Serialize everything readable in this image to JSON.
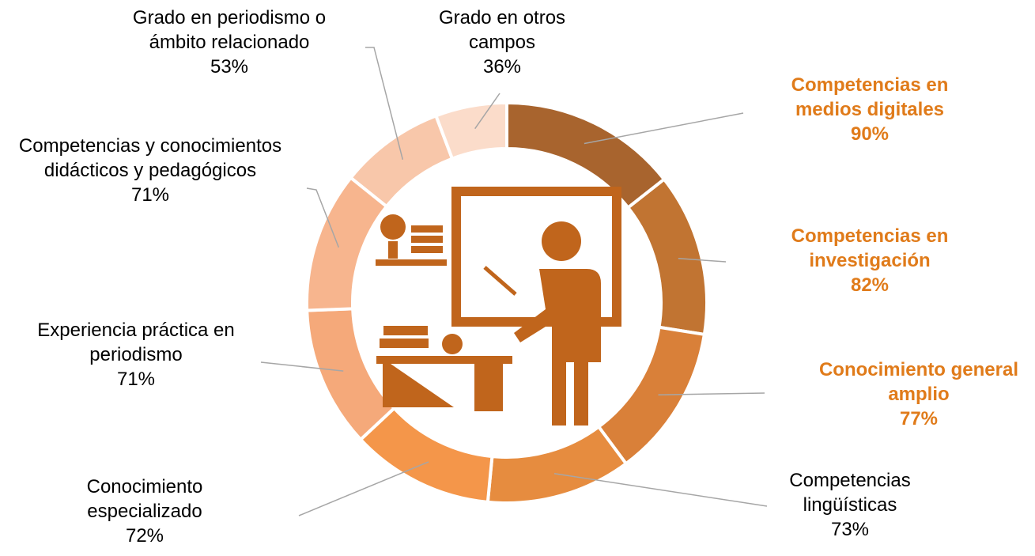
{
  "chart_data": {
    "type": "doughnut",
    "categories": [
      "Competencias en medios digitales",
      "Competencias en investigación",
      "Conocimiento general amplio",
      "Competencias lingüísticas",
      "Conocimiento especializado",
      "Experiencia práctica en periodismo",
      "Competencias y conocimientos didácticos y pedagógicos",
      "Grado en periodismo o ámbito relacionado",
      "Grado en otros campos"
    ],
    "values": [
      90,
      82,
      77,
      73,
      72,
      71,
      71,
      53,
      36
    ],
    "value_labels": [
      "90%",
      "82%",
      "77%",
      "73%",
      "72%",
      "71%",
      "71%",
      "53%",
      "36%"
    ],
    "colors": [
      "#a8642e",
      "#c17432",
      "#d98039",
      "#e68c3f",
      "#f4964a",
      "#f5a97a",
      "#f7b58e",
      "#f8c7aa",
      "#fbdcca"
    ],
    "label_colors": [
      "#e07b1a",
      "#e07b1a",
      "#e07b1a",
      "#000000",
      "#000000",
      "#000000",
      "#000000",
      "#000000",
      "#000000"
    ]
  }
}
